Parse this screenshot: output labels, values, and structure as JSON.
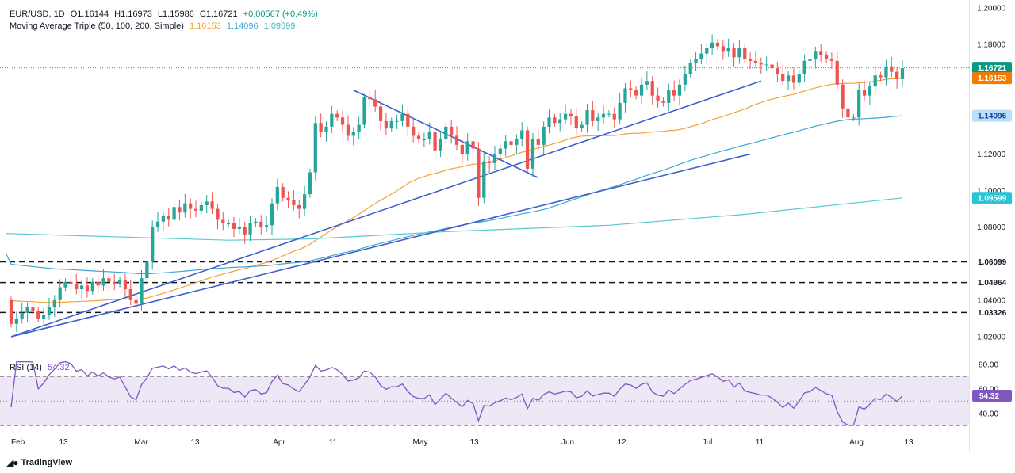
{
  "legend": {
    "symbol": "EUR/USD, 1D",
    "open": "O1.16144",
    "high": "H1.16973",
    "low": "L1.15986",
    "close": "C1.16721",
    "change": "+0.00567 (+0.49%)",
    "ma_label": "Moving Average Triple (50, 100, 200, Simple)",
    "ma50": "1.16153",
    "ma100": "1.14096",
    "ma200": "1.09599",
    "rsi_label": "RSI (14)",
    "rsi_value": "54.32"
  },
  "brand": "TradingView",
  "colors": {
    "bull": "#26a69a",
    "bear": "#ef5350",
    "ma50": "#f5a13a",
    "ma100": "#3fa7d6",
    "ma200": "#5ec8cf",
    "trend": "#3c5fd1",
    "rsi": "#7e57c2",
    "rsi_band": "#ede7f6"
  },
  "chart_data": {
    "type": "candlestick",
    "price_axis": {
      "ylim": [
        1.01,
        1.2
      ],
      "ticks": [
        "1.20000",
        "1.18000",
        "1.16000",
        "1.14000",
        "1.12000",
        "1.10000",
        "1.08000",
        "1.06000",
        "1.04000",
        "1.02000"
      ]
    },
    "time_axis": {
      "labels": [
        "Feb",
        "13",
        "Mar",
        "13",
        "Apr",
        "11",
        "May",
        "13",
        "Jun",
        "12",
        "Jul",
        "11",
        "Aug",
        "13"
      ]
    },
    "price_tags": [
      {
        "value": "1.16721",
        "level": 1.16721,
        "kind": "last"
      },
      {
        "value": "1.16153",
        "level": 1.16153,
        "kind": "ma50"
      },
      {
        "value": "1.14096",
        "level": 1.14096,
        "kind": "ma100"
      },
      {
        "value": "1.09599",
        "level": 1.09599,
        "kind": "ma200"
      },
      {
        "value": "1.06099",
        "level": 1.06099,
        "kind": "level"
      },
      {
        "value": "1.04964",
        "level": 1.04964,
        "kind": "level"
      },
      {
        "value": "1.03326",
        "level": 1.03326,
        "kind": "level"
      }
    ],
    "horizontal_levels": [
      1.06099,
      1.04964,
      1.03326
    ],
    "closes": [
      1.027,
      1.03,
      1.033,
      1.036,
      1.034,
      1.03,
      1.032,
      1.036,
      1.04,
      1.047,
      1.05,
      1.049,
      1.046,
      1.048,
      1.045,
      1.05,
      1.048,
      1.052,
      1.05,
      1.049,
      1.051,
      1.046,
      1.04,
      1.038,
      1.052,
      1.061,
      1.08,
      1.083,
      1.086,
      1.084,
      1.091,
      1.088,
      1.093,
      1.09,
      1.089,
      1.092,
      1.094,
      1.09,
      1.084,
      1.082,
      1.082,
      1.079,
      1.08,
      1.076,
      1.082,
      1.083,
      1.08,
      1.081,
      1.093,
      1.102,
      1.096,
      1.095,
      1.092,
      1.09,
      1.098,
      1.11,
      1.137,
      1.132,
      1.135,
      1.142,
      1.14,
      1.136,
      1.13,
      1.132,
      1.136,
      1.151,
      1.15,
      1.146,
      1.138,
      1.134,
      1.138,
      1.138,
      1.142,
      1.135,
      1.13,
      1.128,
      1.128,
      1.132,
      1.122,
      1.128,
      1.135,
      1.13,
      1.125,
      1.12,
      1.127,
      1.123,
      1.096,
      1.116,
      1.115,
      1.12,
      1.123,
      1.127,
      1.125,
      1.128,
      1.133,
      1.112,
      1.128,
      1.125,
      1.135,
      1.14,
      1.137,
      1.139,
      1.142,
      1.141,
      1.134,
      1.136,
      1.144,
      1.138,
      1.14,
      1.142,
      1.142,
      1.139,
      1.148,
      1.156,
      1.155,
      1.152,
      1.158,
      1.16,
      1.152,
      1.149,
      1.148,
      1.155,
      1.152,
      1.158,
      1.164,
      1.17,
      1.172,
      1.175,
      1.178,
      1.181,
      1.179,
      1.176,
      1.178,
      1.173,
      1.178,
      1.172,
      1.171,
      1.17,
      1.169,
      1.169,
      1.167,
      1.164,
      1.16,
      1.163,
      1.159,
      1.164,
      1.171,
      1.172,
      1.176,
      1.174,
      1.172,
      1.171,
      1.158,
      1.145,
      1.14,
      1.14,
      1.155,
      1.152,
      1.157,
      1.163,
      1.162,
      1.168,
      1.165,
      1.161,
      1.167
    ],
    "rsi": {
      "ylim": [
        25,
        85
      ],
      "ticks": [
        "80.00",
        "60.00",
        "40.00"
      ],
      "band": [
        30,
        70
      ],
      "mid": 50,
      "last": 54.32
    }
  }
}
